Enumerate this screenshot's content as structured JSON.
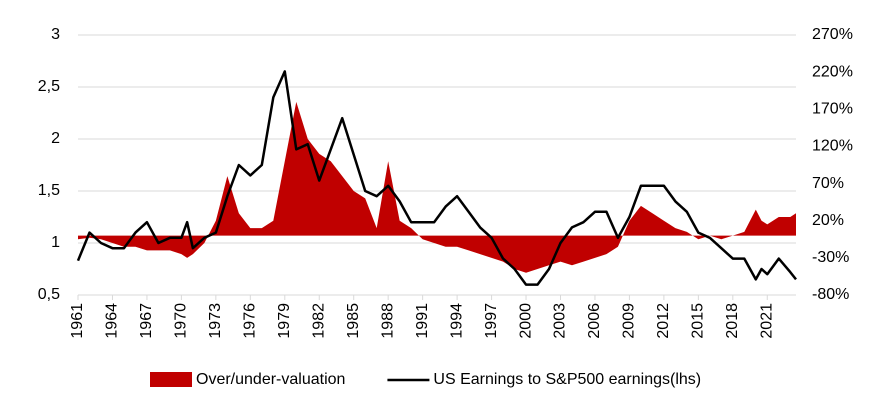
{
  "chart_data": {
    "type": "area-line",
    "x": [
      1961,
      1962,
      1963,
      1964,
      1965,
      1966,
      1967,
      1968,
      1969,
      1970,
      1970.5,
      1971,
      1972,
      1973,
      1974,
      1975,
      1976,
      1977,
      1978,
      1979,
      1980,
      1981,
      1982,
      1983,
      1984,
      1985,
      1986,
      1987,
      1988,
      1989,
      1990,
      1991,
      1992,
      1993,
      1994,
      1995,
      1996,
      1997,
      1998,
      1999,
      2000,
      2001,
      2002,
      2003,
      2004,
      2005,
      2006,
      2007,
      2008,
      2009,
      2010,
      2011,
      2012,
      2013,
      2014,
      2015,
      2016,
      2017,
      2018,
      2019,
      2020,
      2020.5,
      2021,
      2022,
      2023,
      2023.5
    ],
    "series": [
      {
        "name": "Over/under-valuation",
        "color": "#c00000",
        "axis": "y2",
        "kind": "area",
        "values": [
          -5,
          -3,
          -5,
          -10,
          -15,
          -15,
          -20,
          -20,
          -20,
          -25,
          -30,
          -25,
          -10,
          20,
          80,
          30,
          10,
          10,
          20,
          100,
          180,
          130,
          110,
          100,
          80,
          60,
          50,
          10,
          100,
          20,
          10,
          -5,
          -10,
          -15,
          -15,
          -20,
          -25,
          -30,
          -35,
          -45,
          -50,
          -45,
          -40,
          -35,
          -40,
          -35,
          -30,
          -25,
          -15,
          20,
          40,
          30,
          20,
          10,
          5,
          -5,
          0,
          -5,
          0,
          5,
          35,
          20,
          15,
          25,
          25,
          30
        ]
      },
      {
        "name": "US Earnings to S&P500 earnings(lhs)",
        "color": "#000000",
        "axis": "y",
        "kind": "line",
        "values": [
          0.83,
          1.1,
          1.0,
          0.95,
          0.95,
          1.1,
          1.2,
          1.0,
          1.05,
          1.05,
          1.2,
          0.95,
          1.05,
          1.1,
          1.45,
          1.75,
          1.65,
          1.75,
          2.4,
          2.65,
          1.9,
          1.95,
          1.6,
          1.9,
          2.2,
          1.85,
          1.5,
          1.45,
          1.55,
          1.4,
          1.2,
          1.2,
          1.2,
          1.35,
          1.45,
          1.3,
          1.15,
          1.05,
          0.85,
          0.75,
          0.6,
          0.6,
          0.75,
          1.0,
          1.15,
          1.2,
          1.3,
          1.3,
          1.05,
          1.25,
          1.55,
          1.55,
          1.55,
          1.4,
          1.3,
          1.1,
          1.05,
          0.95,
          0.85,
          0.85,
          0.65,
          0.75,
          0.7,
          0.85,
          0.72,
          0.65
        ]
      }
    ],
    "xlim": [
      1961,
      2023.5
    ],
    "xticks": [
      1961,
      1964,
      1967,
      1970,
      1973,
      1976,
      1979,
      1982,
      1985,
      1988,
      1991,
      1994,
      1997,
      2000,
      2003,
      2006,
      2009,
      2012,
      2015,
      2018,
      2021
    ],
    "ylim": [
      0.5,
      3
    ],
    "yticks": [
      {
        "value": 0.5,
        "label": "0,5"
      },
      1,
      {
        "value": 1.5,
        "label": "1,5"
      },
      2,
      {
        "value": 2.5,
        "label": "2,5"
      },
      3
    ],
    "y2lim": [
      -80,
      270
    ],
    "y2ticks": [
      {
        "value": -80,
        "label": "-80%"
      },
      {
        "value": -30,
        "label": "-30%"
      },
      {
        "value": 20,
        "label": "20%"
      },
      {
        "value": 70,
        "label": "70%"
      },
      {
        "value": 120,
        "label": "120%"
      },
      {
        "value": 170,
        "label": "170%"
      },
      {
        "value": 220,
        "label": "220%"
      },
      {
        "value": 270,
        "label": "270%"
      }
    ],
    "grid": true,
    "legend": "bottom"
  }
}
